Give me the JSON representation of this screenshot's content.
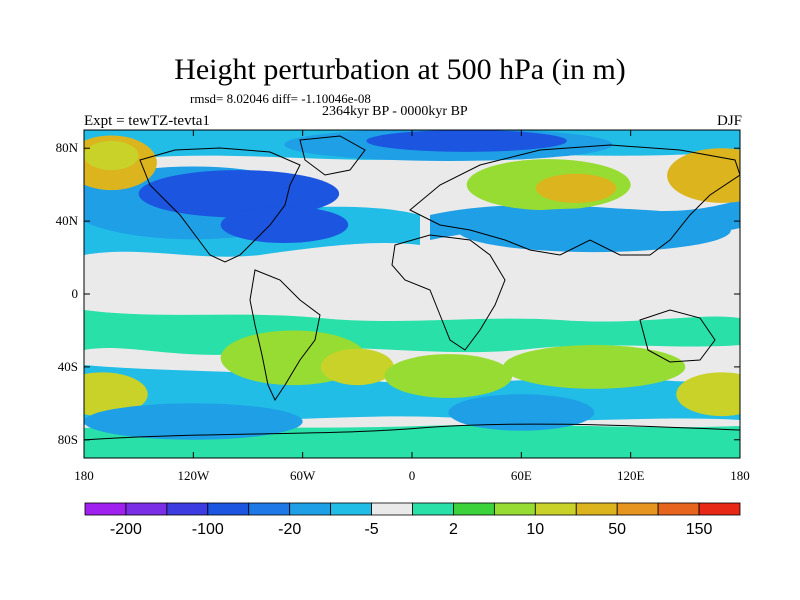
{
  "title": "Height perturbation at 500 hPa (in m)",
  "stats": "rmsd= 8.02046 diff= -1.10046e-08",
  "period": "2364kyr BP - 0000kyr BP",
  "experiment": "Expt = tewTZ-tevta1",
  "season": "DJF",
  "axes": {
    "y_ticks": [
      {
        "lat": 80,
        "label": "80N"
      },
      {
        "lat": 40,
        "label": "40N"
      },
      {
        "lat": 0,
        "label": "0"
      },
      {
        "lat": -40,
        "label": "40S"
      },
      {
        "lat": -80,
        "label": "80S"
      }
    ],
    "x_ticks": [
      {
        "lon": -180,
        "label": "180"
      },
      {
        "lon": -120,
        "label": "120W"
      },
      {
        "lon": -60,
        "label": "60W"
      },
      {
        "lon": 0,
        "label": "0"
      },
      {
        "lon": 60,
        "label": "60E"
      },
      {
        "lon": 120,
        "label": "120E"
      },
      {
        "lon": 180,
        "label": "180"
      }
    ],
    "lon_range": [
      -180,
      180
    ],
    "lat_range": [
      -90,
      90
    ]
  },
  "colorbar": {
    "colors": [
      "#a020f0",
      "#7a2ee6",
      "#3c3ce0",
      "#1b55e0",
      "#1e78e6",
      "#1e9fe6",
      "#21bde6",
      "#eaeaea",
      "#28e0a8",
      "#3cd23c",
      "#96dc32",
      "#c8d228",
      "#dcb41e",
      "#e6961e",
      "#e6641e",
      "#e62814"
    ],
    "labels": [
      {
        "after_box": 1,
        "text": "-200"
      },
      {
        "after_box": 3,
        "text": "-100"
      },
      {
        "after_box": 5,
        "text": "-20"
      },
      {
        "after_box": 7,
        "text": "-5"
      },
      {
        "after_box": 9,
        "text": "2"
      },
      {
        "after_box": 11,
        "text": "10"
      },
      {
        "after_box": 13,
        "text": "50"
      },
      {
        "after_box": 15,
        "text": "150"
      }
    ]
  },
  "field_patches": [
    {
      "lon": -120,
      "lat": 50,
      "rlon": 70,
      "rlat": 20,
      "color": "#1e9fe6"
    },
    {
      "lon": -95,
      "lat": 55,
      "rlon": 55,
      "rlat": 13,
      "color": "#1b55e0"
    },
    {
      "lon": -70,
      "lat": 38,
      "rlon": 35,
      "rlat": 10,
      "color": "#1b55e0"
    },
    {
      "lon": -165,
      "lat": 72,
      "rlon": 25,
      "rlat": 15,
      "color": "#dcb41e"
    },
    {
      "lon": -165,
      "lat": 76,
      "rlon": 15,
      "rlat": 8,
      "color": "#c8d228"
    },
    {
      "lon": 20,
      "lat": 82,
      "rlon": 90,
      "rlat": 9,
      "color": "#1e9fe6"
    },
    {
      "lon": 30,
      "lat": 84,
      "rlon": 55,
      "rlat": 6,
      "color": "#1b55e0"
    },
    {
      "lon": 75,
      "lat": 60,
      "rlon": 45,
      "rlat": 14,
      "color": "#96dc32"
    },
    {
      "lon": 90,
      "lat": 58,
      "rlon": 22,
      "rlat": 8,
      "color": "#dcb41e"
    },
    {
      "lon": 170,
      "lat": 65,
      "rlon": 30,
      "rlat": 15,
      "color": "#dcb41e"
    },
    {
      "lon": 100,
      "lat": 35,
      "rlon": 75,
      "rlat": 12,
      "color": "#1e9fe6"
    },
    {
      "lon": -65,
      "lat": -35,
      "rlon": 40,
      "rlat": 15,
      "color": "#96dc32"
    },
    {
      "lon": -30,
      "lat": -40,
      "rlon": 20,
      "rlat": 10,
      "color": "#c8d228"
    },
    {
      "lon": 20,
      "lat": -45,
      "rlon": 35,
      "rlat": 12,
      "color": "#96dc32"
    },
    {
      "lon": 100,
      "lat": -40,
      "rlon": 50,
      "rlat": 12,
      "color": "#96dc32"
    },
    {
      "lon": -170,
      "lat": -55,
      "rlon": 25,
      "rlat": 12,
      "color": "#c8d228"
    },
    {
      "lon": 170,
      "lat": -55,
      "rlon": 25,
      "rlat": 12,
      "color": "#c8d228"
    },
    {
      "lon": -120,
      "lat": -70,
      "rlon": 60,
      "rlat": 10,
      "color": "#1e9fe6"
    },
    {
      "lon": 60,
      "lat": -65,
      "rlon": 40,
      "rlat": 10,
      "color": "#1e9fe6"
    }
  ]
}
